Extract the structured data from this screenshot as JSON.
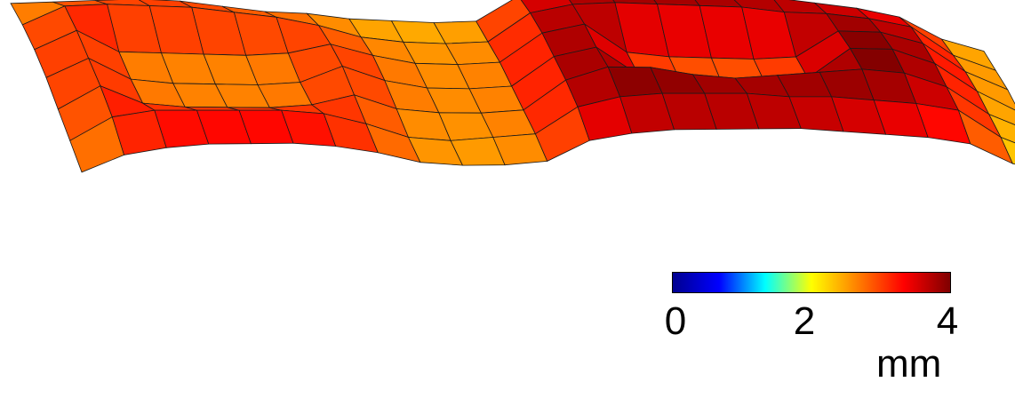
{
  "chart_data": {
    "type": "surface",
    "title": "",
    "description_note": "",
    "z_range": [
      0,
      4
    ],
    "colorbar": {
      "colormap": "jet",
      "min": 0,
      "max": 4,
      "ticks": [
        "0",
        "2",
        "4"
      ],
      "unit": "mm",
      "colors": [
        "#00008f",
        "#0000ff",
        "#00ffff",
        "#ffff00",
        "#ff7f00",
        "#ff0000",
        "#7f0000"
      ]
    },
    "grid_lines": true,
    "grid_line_color": "#1a1a1a",
    "surface_heights_mm": [
      [
        2.4,
        2.5,
        2.6,
        2.7,
        2.7,
        2.6,
        2.5,
        2.5,
        2.4,
        2.4,
        2.4,
        2.5,
        3.3,
        3.6,
        3.7,
        3.7,
        3.7,
        3.6,
        3.6,
        3.5,
        3.4,
        3.2,
        2.6,
        2.3
      ],
      [
        2.6,
        3.2,
        3.3,
        3.3,
        3.3,
        3.2,
        3.1,
        2.9,
        2.6,
        2.5,
        2.5,
        2.6,
        3.5,
        3.8,
        3.9,
        3.9,
        3.9,
        3.9,
        3.8,
        3.8,
        3.7,
        3.5,
        2.7,
        2.3
      ],
      [
        2.7,
        3.3,
        2.7,
        2.7,
        2.7,
        2.7,
        2.8,
        3.1,
        2.8,
        2.6,
        2.6,
        2.7,
        3.6,
        3.9,
        3.1,
        3.0,
        3.0,
        3.0,
        3.1,
        3.9,
        3.9,
        3.6,
        2.8,
        2.3
      ],
      [
        2.7,
        3.3,
        2.7,
        2.6,
        2.6,
        2.6,
        2.7,
        3.2,
        2.8,
        2.6,
        2.6,
        2.7,
        3.6,
        3.9,
        3.1,
        2.9,
        2.8,
        2.9,
        3.1,
        4.0,
        4.0,
        3.6,
        2.8,
        2.2
      ],
      [
        2.6,
        3.3,
        2.8,
        2.7,
        2.7,
        2.7,
        2.8,
        3.1,
        2.7,
        2.6,
        2.6,
        2.7,
        3.6,
        4.0,
        4.0,
        3.8,
        3.7,
        3.8,
        3.9,
        4.0,
        3.9,
        3.5,
        2.7,
        2.2
      ],
      [
        2.5,
        3.2,
        3.4,
        3.4,
        3.4,
        3.4,
        3.3,
        3.0,
        2.6,
        2.5,
        2.6,
        2.7,
        3.5,
        3.8,
        3.9,
        3.9,
        3.9,
        3.8,
        3.8,
        3.7,
        3.6,
        3.4,
        2.6,
        2.1
      ],
      [
        2.4,
        2.9,
        3.1,
        3.2,
        3.2,
        3.2,
        3.1,
        2.9,
        2.6,
        2.5,
        2.5,
        2.6,
        3.2,
        3.4,
        3.5,
        3.5,
        3.5,
        3.5,
        3.4,
        3.3,
        3.2,
        3.0,
        2.4,
        2.1
      ]
    ]
  },
  "colorbar": {
    "tick_min": "0",
    "tick_mid": "2",
    "tick_max": "4",
    "unit": "mm"
  }
}
